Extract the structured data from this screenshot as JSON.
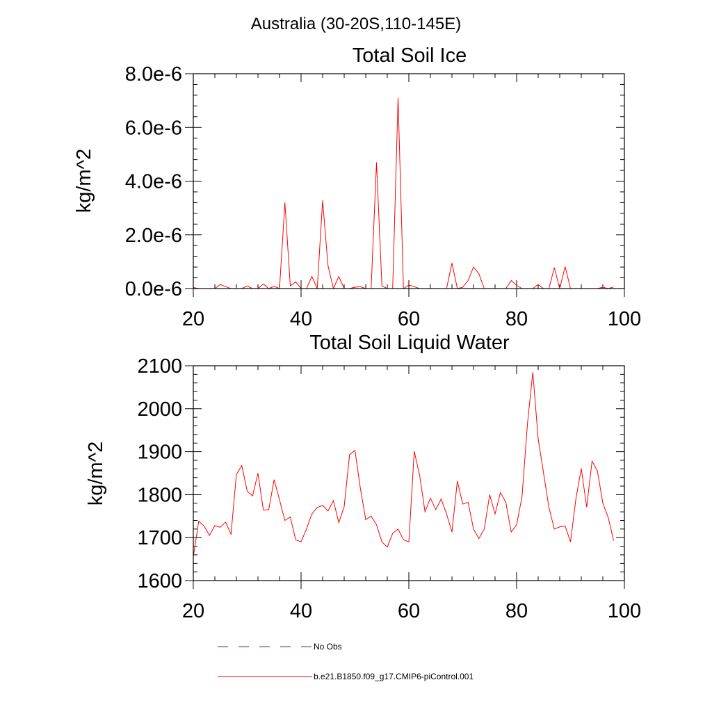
{
  "title": "Australia (30-20S,110-145E)",
  "colors": {
    "model": "#ff0000",
    "obs": "#3b3b8a",
    "axis": "#000000"
  },
  "legend": [
    {
      "label": "No Obs",
      "style": "dashed",
      "color": "#3b3b8a"
    },
    {
      "label": "b.e21.B1850.f09_g17.CMIP6-piControl.001",
      "style": "solid",
      "color": "#ff0000"
    }
  ],
  "chart_data": [
    {
      "type": "line",
      "title": "Total Soil Ice",
      "xlabel": "",
      "ylabel": "kg/m^2",
      "xlim": [
        20,
        100
      ],
      "ylim": [
        0,
        8e-06
      ],
      "xticks": [
        20,
        40,
        60,
        80,
        100
      ],
      "xtick_labels": [
        "20",
        "40",
        "60",
        "80",
        "100"
      ],
      "yticks": [
        0,
        2e-06,
        4e-06,
        6e-06,
        8e-06
      ],
      "ytick_labels": [
        "0.0e-6",
        "2.0e-6",
        "4.0e-6",
        "6.0e-6",
        "8.0e-6"
      ],
      "series": [
        {
          "name": "b.e21.B1850.f09_g17.CMIP6-piControl.001",
          "x": [
            20,
            21,
            22,
            23,
            24,
            25,
            26,
            27,
            28,
            29,
            30,
            31,
            32,
            33,
            34,
            35,
            36,
            37,
            38,
            39,
            40,
            41,
            42,
            43,
            44,
            45,
            46,
            47,
            48,
            49,
            50,
            51,
            52,
            53,
            54,
            55,
            56,
            57,
            58,
            59,
            60,
            61,
            62,
            63,
            64,
            65,
            66,
            67,
            68,
            69,
            70,
            71,
            72,
            73,
            74,
            75,
            76,
            77,
            78,
            79,
            80,
            81,
            82,
            83,
            84,
            85,
            86,
            87,
            88,
            89,
            90,
            91,
            92,
            93,
            94,
            95,
            96,
            97,
            98
          ],
          "values": [
            4e-08,
            0,
            0,
            0,
            0,
            1.5e-07,
            7e-08,
            0,
            0,
            0,
            1e-07,
            0,
            0,
            1.7e-07,
            0,
            8e-08,
            0,
            3.2e-06,
            1e-07,
            2.5e-07,
            0,
            0,
            4.5e-07,
            0,
            3.28e-06,
            8.5e-07,
            0,
            4.5e-07,
            0,
            0,
            5e-08,
            7e-08,
            0,
            0,
            4.7e-06,
            1e-07,
            0,
            0,
            7.1e-06,
            0,
            1.3e-07,
            7e-08,
            0,
            0,
            0,
            0,
            0,
            0,
            9.5e-07,
            0,
            5e-08,
            3e-07,
            8e-07,
            5.5e-07,
            0,
            0,
            0,
            0,
            0,
            3e-07,
            1.2e-07,
            0,
            0,
            0,
            1.5e-07,
            0,
            0,
            7.8e-07,
            0,
            8.2e-07,
            0,
            0,
            0,
            0,
            0,
            0,
            5e-08,
            0,
            6e-08
          ]
        }
      ]
    },
    {
      "type": "line",
      "title": "Total Soil Liquid Water",
      "xlabel": "",
      "ylabel": "kg/m^2",
      "xlim": [
        20,
        100
      ],
      "ylim": [
        1600,
        2100
      ],
      "xticks": [
        20,
        40,
        60,
        80,
        100
      ],
      "xtick_labels": [
        "20",
        "40",
        "60",
        "80",
        "100"
      ],
      "yticks": [
        1600,
        1700,
        1800,
        1900,
        2000,
        2100
      ],
      "ytick_labels": [
        "1600",
        "1700",
        "1800",
        "1900",
        "2000",
        "2100"
      ],
      "series": [
        {
          "name": "b.e21.B1850.f09_g17.CMIP6-piControl.001",
          "x": [
            20,
            21,
            22,
            23,
            24,
            25,
            26,
            27,
            28,
            29,
            30,
            31,
            32,
            33,
            34,
            35,
            36,
            37,
            38,
            39,
            40,
            41,
            42,
            43,
            44,
            45,
            46,
            47,
            48,
            49,
            50,
            51,
            52,
            53,
            54,
            55,
            56,
            57,
            58,
            59,
            60,
            61,
            62,
            63,
            64,
            65,
            66,
            67,
            68,
            69,
            70,
            71,
            72,
            73,
            74,
            75,
            76,
            77,
            78,
            79,
            80,
            81,
            82,
            83,
            84,
            85,
            86,
            87,
            88,
            89,
            90,
            91,
            92,
            93,
            94,
            95,
            96,
            97,
            98
          ],
          "values": [
            1655,
            1738,
            1727,
            1705,
            1728,
            1724,
            1736,
            1708,
            1847,
            1868,
            1808,
            1797,
            1850,
            1764,
            1765,
            1835,
            1788,
            1740,
            1748,
            1695,
            1690,
            1720,
            1755,
            1770,
            1775,
            1762,
            1786,
            1735,
            1772,
            1893,
            1903,
            1815,
            1742,
            1750,
            1730,
            1690,
            1678,
            1710,
            1720,
            1695,
            1690,
            1901,
            1845,
            1760,
            1792,
            1765,
            1790,
            1755,
            1713,
            1832,
            1778,
            1782,
            1720,
            1698,
            1720,
            1800,
            1755,
            1805,
            1782,
            1713,
            1730,
            1795,
            1963,
            2085,
            1930,
            1850,
            1770,
            1720,
            1725,
            1727,
            1690,
            1790,
            1861,
            1771,
            1878,
            1855,
            1780,
            1747,
            1693
          ]
        }
      ]
    }
  ]
}
